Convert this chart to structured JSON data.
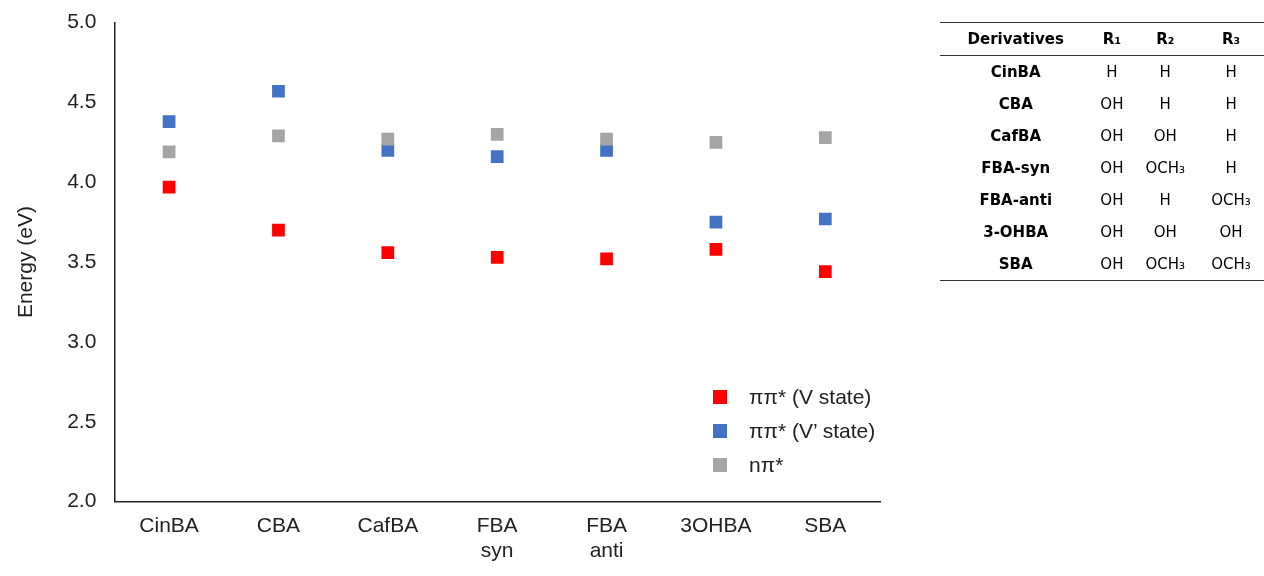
{
  "chart_data": [
    {
      "type": "scatter",
      "ylabel": "Energy (eV)",
      "categories": [
        "CinBA",
        "CBA",
        "CafBA",
        "FBA syn",
        "FBA anti",
        "3OHBA",
        "SBA"
      ],
      "series": [
        {
          "name": "ππ* (V state)",
          "color": "#ff0000",
          "values": [
            3.97,
            3.7,
            3.56,
            3.53,
            3.52,
            3.58,
            3.44
          ]
        },
        {
          "name": "ππ* (V’ state)",
          "color": "#4472c4",
          "values": [
            4.38,
            4.57,
            4.2,
            4.16,
            4.2,
            3.75,
            3.77
          ]
        },
        {
          "name": "nπ*",
          "color": "#a5a5a5",
          "values": [
            4.19,
            4.29,
            4.27,
            4.3,
            4.27,
            4.25,
            4.28
          ]
        }
      ],
      "ylim": [
        2.0,
        5.0
      ],
      "yticks": [
        {
          "value": 2.0,
          "label": "2.0"
        },
        {
          "value": 2.5,
          "label": "2.5"
        },
        {
          "value": 3.0,
          "label": "3.0"
        },
        {
          "value": 3.5,
          "label": "3.5"
        },
        {
          "value": 4.0,
          "label": "4.0"
        },
        {
          "value": 4.5,
          "label": "4.5"
        },
        {
          "value": 5.0,
          "label": "5.0"
        }
      ],
      "marker": "square",
      "grid": false,
      "legend": "bottom right"
    },
    {
      "type": "other",
      "categories": [
        "Derivatives",
        "R₁",
        "R₂",
        "R₃"
      ],
      "y_categories": [
        "CinBA",
        "CBA",
        "CafBA",
        "FBA-syn",
        "FBA-anti",
        "3-OHBA",
        "SBA"
      ],
      "cell_labels": [
        [
          "H",
          "H",
          "H"
        ],
        [
          "OH",
          "H",
          "H"
        ],
        [
          "OH",
          "OH",
          "H"
        ],
        [
          "OH",
          "OCH₃",
          "H"
        ],
        [
          "OH",
          "H",
          "OCH₃"
        ],
        [
          "OH",
          "OH",
          "OH"
        ],
        [
          "OH",
          "OCH₃",
          "OCH₃"
        ]
      ]
    }
  ]
}
